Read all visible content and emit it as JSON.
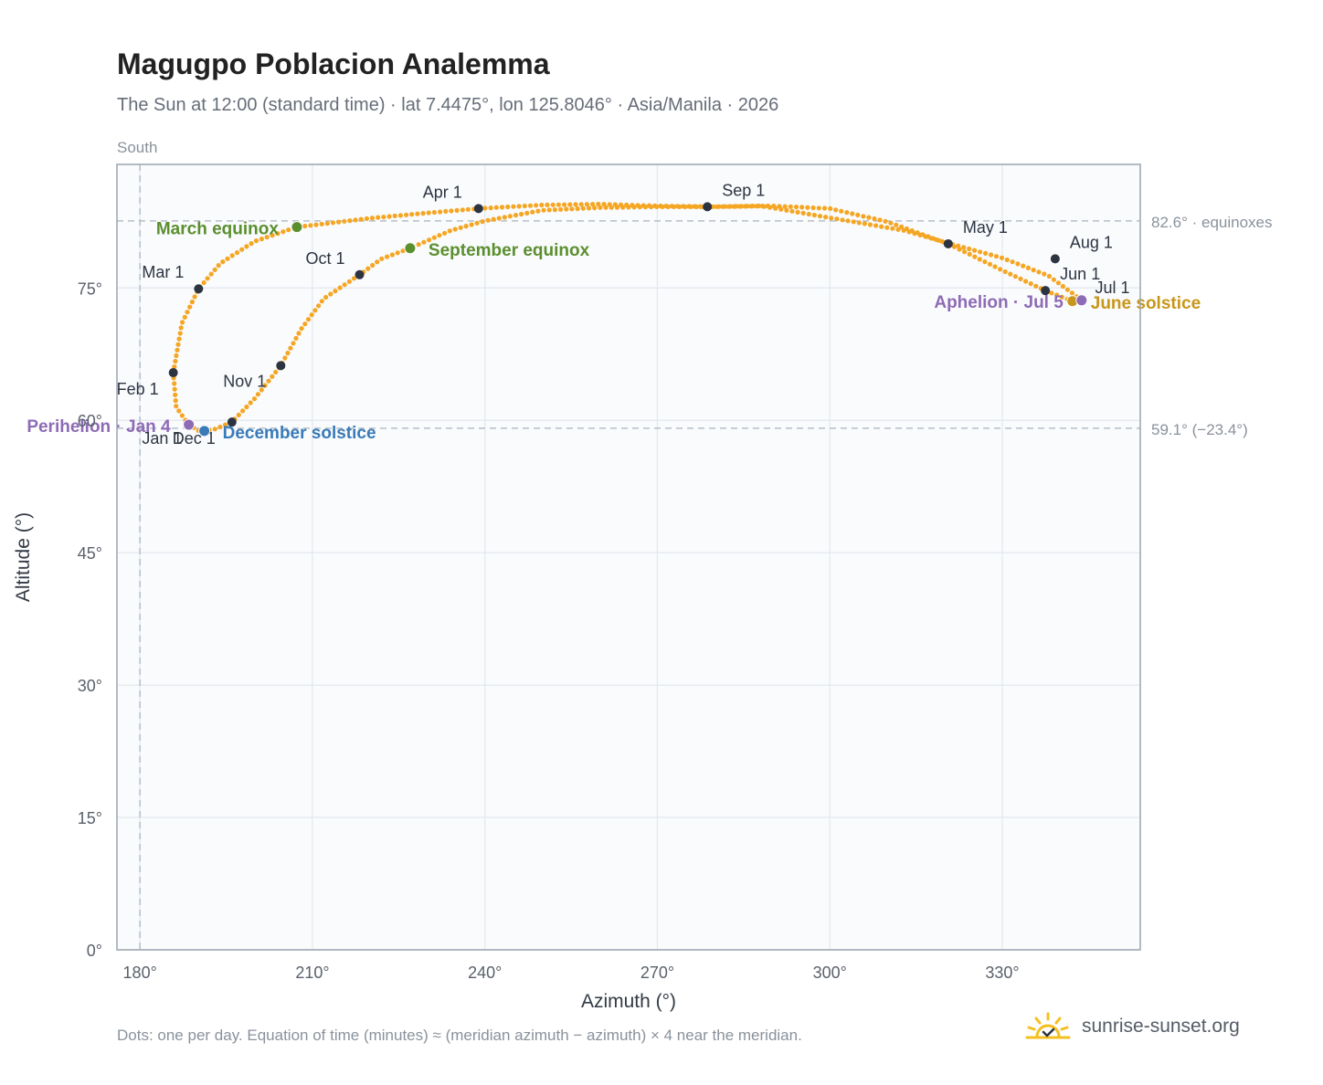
{
  "header": {
    "title": "Magugpo Poblacion Analemma",
    "subtitle": "The Sun at 12:00 (standard time) · lat 7.4475°, lon 125.8046° · Asia/Manila · 2026"
  },
  "footer": {
    "note": "Dots: one per day. Equation of time (minutes) ≈ (meridian azimuth − azimuth) × 4 near the meridian.",
    "brand": "sunrise-sunset.org",
    "brand_icon": "sun-icon"
  },
  "colors": {
    "path": "#f5a623",
    "month_marker": "#2d3441",
    "equinox": "#5b8f2e",
    "june_solstice": "#c8961a",
    "december_solstice": "#3a7ab8",
    "apsis": "#8e6bb5",
    "reference_line": "#b7bec8",
    "plot_background": "#f9fbfd",
    "plot_border": "#9aa4b0"
  },
  "chart_data": {
    "type": "scatter",
    "xlabel": "Azimuth (°)",
    "ylabel": "Altitude (°)",
    "xlim": [
      176,
      354
    ],
    "ylim": [
      0,
      89
    ],
    "x_ticks": [
      180,
      210,
      240,
      270,
      300,
      330
    ],
    "x_tick_labels": [
      "180°",
      "210°",
      "240°",
      "270°",
      "300°",
      "330°"
    ],
    "y_ticks": [
      0,
      15,
      30,
      45,
      60,
      75
    ],
    "y_tick_labels": [
      "0°",
      "15°",
      "30°",
      "45°",
      "60°",
      "75°"
    ],
    "grid": true,
    "meridian": {
      "azimuth": 180,
      "label": "South"
    },
    "reference_lines": [
      {
        "altitude": 82.6,
        "label": "82.6° · equinoxes"
      },
      {
        "altitude": 59.1,
        "label": "59.1° (−23.4°)"
      }
    ],
    "path_keypoints": [
      [
        188.5,
        59.5
      ],
      [
        190.5,
        58.7
      ],
      [
        193.0,
        59.0
      ],
      [
        196.0,
        59.8
      ],
      [
        200.0,
        62.5
      ],
      [
        204.5,
        66.2
      ],
      [
        208.0,
        70.3
      ],
      [
        212.0,
        73.8
      ],
      [
        218.2,
        76.5
      ],
      [
        222.0,
        78.3
      ],
      [
        227.0,
        79.5
      ],
      [
        234.0,
        81.5
      ],
      [
        240.0,
        82.6
      ],
      [
        250.0,
        83.8
      ],
      [
        260.0,
        84.1
      ],
      [
        270.0,
        84.2
      ],
      [
        278.7,
        84.2
      ],
      [
        288.0,
        84.3
      ],
      [
        296.0,
        83.4
      ],
      [
        305.0,
        82.4
      ],
      [
        313.0,
        81.5
      ],
      [
        321.0,
        80.0
      ],
      [
        330.0,
        78.4
      ],
      [
        338.0,
        76.4
      ],
      [
        342.0,
        74.5
      ],
      [
        343.9,
        73.5
      ],
      [
        342.2,
        73.5
      ],
      [
        337.5,
        74.7
      ],
      [
        330.0,
        77.0
      ],
      [
        320.6,
        80.0
      ],
      [
        310.0,
        82.5
      ],
      [
        300.0,
        84.0
      ],
      [
        290.0,
        84.3
      ],
      [
        280.0,
        84.2
      ],
      [
        270.0,
        84.3
      ],
      [
        260.0,
        84.5
      ],
      [
        250.0,
        84.4
      ],
      [
        238.9,
        84.0
      ],
      [
        230.0,
        83.5
      ],
      [
        220.0,
        82.9
      ],
      [
        207.3,
        81.9
      ],
      [
        200.0,
        80.3
      ],
      [
        194.0,
        77.8
      ],
      [
        190.2,
        74.9
      ],
      [
        187.3,
        71.0
      ],
      [
        185.8,
        65.4
      ],
      [
        186.3,
        61.5
      ],
      [
        188.5,
        59.5
      ]
    ],
    "month_markers": [
      {
        "label": "Jan 1",
        "x": 188.3,
        "y": 59.6
      },
      {
        "label": "Feb 1",
        "x": 185.8,
        "y": 65.4
      },
      {
        "label": "Mar 1",
        "x": 190.2,
        "y": 74.9
      },
      {
        "label": "Apr 1",
        "x": 238.9,
        "y": 84.0
      },
      {
        "label": "May 1",
        "x": 320.6,
        "y": 80.0
      },
      {
        "label": "Jun 1",
        "x": 337.5,
        "y": 74.7
      },
      {
        "label": "Jul 1",
        "x": 343.9,
        "y": 73.5
      },
      {
        "label": "Aug 1",
        "x": 339.2,
        "y": 78.3
      },
      {
        "label": "Sep 1",
        "x": 278.7,
        "y": 84.2
      },
      {
        "label": "Oct 1",
        "x": 218.2,
        "y": 76.5
      },
      {
        "label": "Nov 1",
        "x": 204.5,
        "y": 66.2
      },
      {
        "label": "Dec 1",
        "x": 196.0,
        "y": 59.8
      }
    ],
    "events": [
      {
        "label": "March equinox",
        "x": 207.3,
        "y": 81.9,
        "kind": "equinox"
      },
      {
        "label": "September equinox",
        "x": 227.0,
        "y": 79.5,
        "kind": "equinox"
      },
      {
        "label": "June solstice",
        "x": 342.2,
        "y": 73.5,
        "kind": "june_solstice"
      },
      {
        "label": "December solstice",
        "x": 191.2,
        "y": 58.8,
        "kind": "december_solstice"
      },
      {
        "label": "Perihelion · Jan 4",
        "x": 188.5,
        "y": 59.5,
        "kind": "apsis"
      },
      {
        "label": "Aphelion · Jul 5",
        "x": 343.8,
        "y": 73.6,
        "kind": "apsis"
      }
    ]
  }
}
